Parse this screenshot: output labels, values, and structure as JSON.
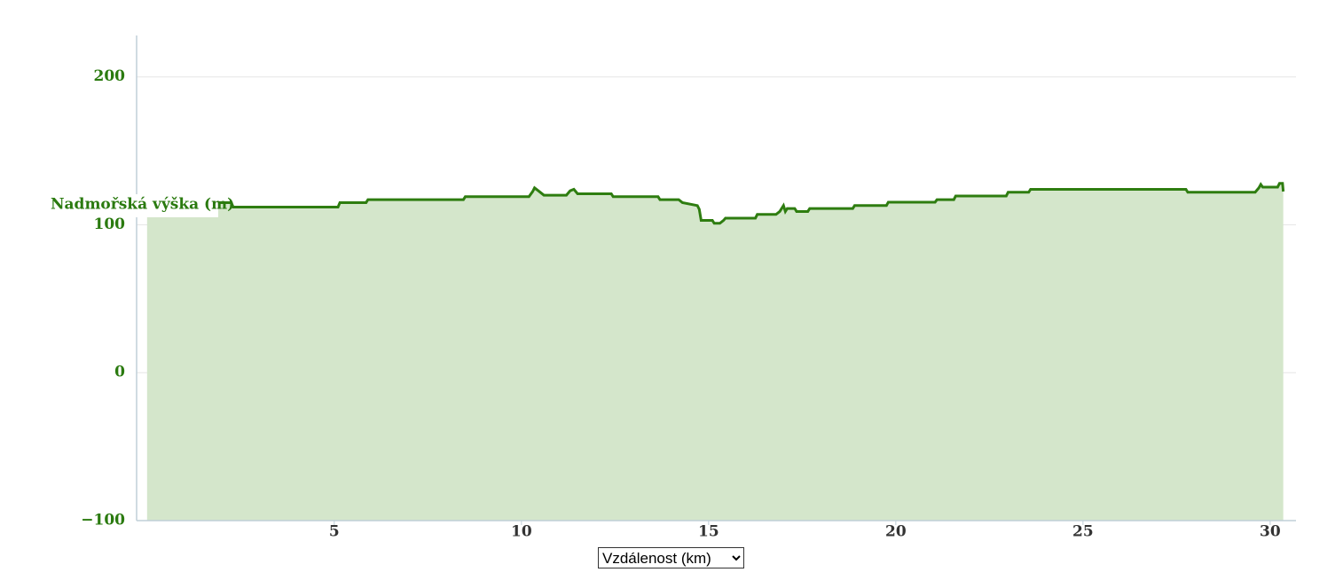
{
  "chart_data": {
    "type": "area",
    "y_label": "Nadmořská výška (m)",
    "x_label": "Vzdálenost (km)",
    "color": "#2e7d10",
    "fill": "#d4e6cb",
    "x": [
      0,
      2.25,
      2.3,
      5.1,
      5.15,
      5.85,
      5.9,
      8.45,
      8.5,
      10.2,
      10.3,
      10.35,
      10.45,
      10.6,
      11.2,
      11.3,
      11.4,
      11.5,
      12.4,
      12.45,
      13.65,
      13.7,
      14.2,
      14.3,
      14.7,
      14.75,
      14.8,
      15.1,
      15.15,
      15.3,
      15.4,
      15.45,
      16.25,
      16.3,
      16.8,
      16.9,
      17.0,
      17.05,
      17.1,
      17.3,
      17.35,
      17.65,
      17.7,
      18.85,
      18.9,
      19.75,
      19.8,
      21.05,
      21.1,
      21.55,
      21.6,
      22.95,
      23.0,
      23.55,
      23.6,
      27.75,
      27.8,
      29.6,
      29.7,
      29.75,
      29.8,
      30.2,
      30.25,
      30.33,
      30.35
    ],
    "values": [
      115,
      115,
      112,
      112,
      115,
      115,
      117,
      117,
      119,
      119,
      122.5,
      125,
      123,
      120,
      120,
      123,
      124,
      121,
      121,
      119,
      119,
      117,
      117,
      115,
      113,
      110.5,
      103,
      103,
      101,
      101,
      103,
      104.5,
      104.5,
      107,
      107,
      109,
      113,
      109,
      111,
      111,
      109,
      109,
      111,
      111,
      113,
      113,
      115.3,
      115.3,
      117,
      117,
      119.5,
      119.5,
      122,
      122,
      124,
      124,
      122,
      122,
      125,
      127.3,
      125.5,
      125.5,
      128,
      128,
      122.5
    ],
    "xlim": [
      -0.28,
      30.69
    ],
    "ylim": [
      -100,
      228
    ],
    "xticks": [
      5,
      10,
      15,
      20,
      25,
      30
    ],
    "yticks": [
      {
        "value": -100,
        "label": "−100"
      },
      0,
      100,
      200
    ],
    "grid": true
  }
}
